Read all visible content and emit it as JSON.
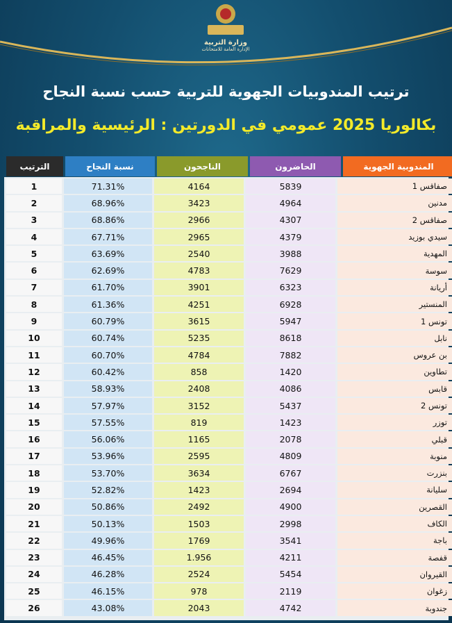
{
  "header": {
    "ministry": "وزارة التربية",
    "department": "الإدارة العامة للامتحانات"
  },
  "title": [
    "ترتيب المندوبيات الجهوية للتربية حسب نسبة النجاح",
    "بكالوريا 2025 عمومي في الدورتين : الرئيسية والمراقبة"
  ],
  "table": {
    "columns": [
      "المندوبية الجهوية",
      "الحاضرون",
      "الناجحون",
      "نسبة النجاح",
      "الترتيب"
    ],
    "rows": [
      [
        "صفاقس 1",
        "5839",
        "4164",
        "71.31%",
        "1"
      ],
      [
        "مدنين",
        "4964",
        "3423",
        "68.96%",
        "2"
      ],
      [
        "صفاقس 2",
        "4307",
        "2966",
        "68.86%",
        "3"
      ],
      [
        "سيدي بوزيد",
        "4379",
        "2965",
        "67.71%",
        "4"
      ],
      [
        "المهدية",
        "3988",
        "2540",
        "63.69%",
        "5"
      ],
      [
        "سوسة",
        "7629",
        "4783",
        "62.69%",
        "6"
      ],
      [
        "أريانة",
        "6323",
        "3901",
        "61.70%",
        "7"
      ],
      [
        "المنستير",
        "6928",
        "4251",
        "61.36%",
        "8"
      ],
      [
        "تونس 1",
        "5947",
        "3615",
        "60.79%",
        "9"
      ],
      [
        "نابل",
        "8618",
        "5235",
        "60.74%",
        "10"
      ],
      [
        "بن عروس",
        "7882",
        "4784",
        "60.70%",
        "11"
      ],
      [
        "تطاوين",
        "1420",
        "858",
        "60.42%",
        "12"
      ],
      [
        "قابس",
        "4086",
        "2408",
        "58.93%",
        "13"
      ],
      [
        "تونس 2",
        "5437",
        "3152",
        "57.97%",
        "14"
      ],
      [
        "توزر",
        "1423",
        "819",
        "57.55%",
        "15"
      ],
      [
        "قبلي",
        "2078",
        "1165",
        "56.06%",
        "16"
      ],
      [
        "منوبة",
        "4809",
        "2595",
        "53.96%",
        "17"
      ],
      [
        "بنزرت",
        "6767",
        "3634",
        "53.70%",
        "18"
      ],
      [
        "سليانة",
        "2694",
        "1423",
        "52.82%",
        "19"
      ],
      [
        "القصرين",
        "4900",
        "2492",
        "50.86%",
        "20"
      ],
      [
        "الكاف",
        "2998",
        "1503",
        "50.13%",
        "21"
      ],
      [
        "باجة",
        "3541",
        "1769",
        "49.96%",
        "22"
      ],
      [
        "قفصة",
        "4211",
        "1.956",
        "46.45%",
        "23"
      ],
      [
        "القيروان",
        "5454",
        "2524",
        "46.28%",
        "24"
      ],
      [
        "زغوان",
        "2119",
        "978",
        "46.15%",
        "25"
      ],
      [
        "جندوبة",
        "4742",
        "2043",
        "43.08%",
        "26"
      ]
    ]
  }
}
